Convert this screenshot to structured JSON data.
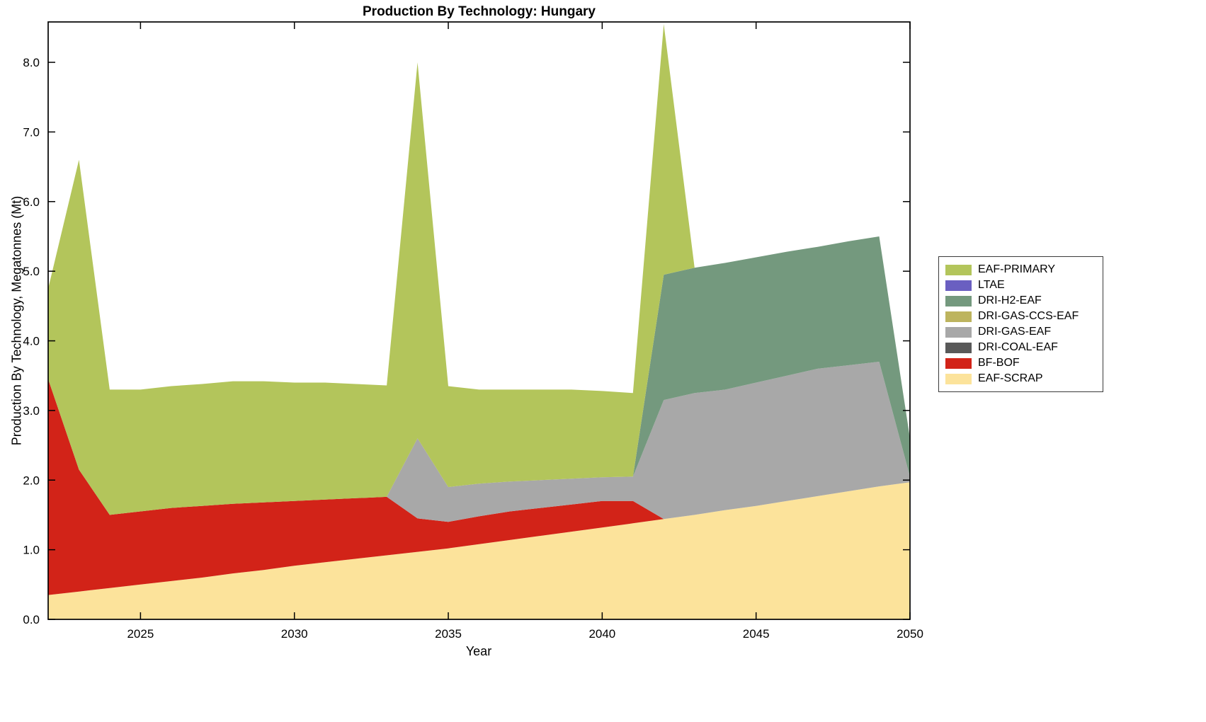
{
  "title": "Production By Technology: Hungary",
  "chart_data": {
    "type": "area",
    "title": "Production By Technology: Hungary",
    "xlabel": "Year",
    "ylabel": "Production By Technology, Megatonnes (Mt)",
    "xlim": [
      2022,
      2050
    ],
    "ylim": [
      0,
      8.58
    ],
    "grid": false,
    "legend_position": "right-outside",
    "xticks": [
      2025,
      2030,
      2035,
      2040,
      2045,
      2050
    ],
    "yticks": [
      "0.0",
      "1.0",
      "2.0",
      "3.0",
      "4.0",
      "5.0",
      "6.0",
      "7.0",
      "8.0"
    ],
    "x": [
      2022,
      2023,
      2024,
      2025,
      2026,
      2027,
      2028,
      2029,
      2030,
      2031,
      2032,
      2033,
      2034,
      2035,
      2036,
      2037,
      2038,
      2039,
      2040,
      2041,
      2042,
      2043,
      2044,
      2045,
      2046,
      2047,
      2048,
      2049,
      2050
    ],
    "stack_order": "bottom_to_top",
    "series": [
      {
        "name": "EAF-SCRAP",
        "color": "#fce39b",
        "values": [
          0.35,
          0.4,
          0.45,
          0.5,
          0.55,
          0.6,
          0.66,
          0.71,
          0.77,
          0.82,
          0.87,
          0.92,
          0.97,
          1.02,
          1.08,
          1.14,
          1.2,
          1.26,
          1.32,
          1.38,
          1.44,
          1.5,
          1.57,
          1.63,
          1.7,
          1.77,
          1.84,
          1.91,
          1.97
        ]
      },
      {
        "name": "BF-BOF",
        "color": "#d22318",
        "values": [
          3.1,
          1.75,
          1.05,
          1.05,
          1.05,
          1.03,
          1.0,
          0.97,
          0.93,
          0.9,
          0.87,
          0.84,
          0.48,
          0.38,
          0.4,
          0.41,
          0.4,
          0.39,
          0.38,
          0.32,
          0,
          0,
          0,
          0,
          0,
          0,
          0,
          0,
          0
        ]
      },
      {
        "name": "DRI-COAL-EAF",
        "color": "#595959",
        "values": [
          0,
          0,
          0,
          0,
          0,
          0,
          0,
          0,
          0,
          0,
          0,
          0,
          0,
          0,
          0,
          0,
          0,
          0,
          0,
          0,
          0,
          0,
          0,
          0,
          0,
          0,
          0,
          0,
          0
        ]
      },
      {
        "name": "DRI-GAS-EAF",
        "color": "#a8a8a8",
        "values": [
          0,
          0,
          0,
          0,
          0,
          0,
          0,
          0,
          0,
          0,
          0,
          0,
          1.15,
          0.5,
          0.47,
          0.43,
          0.4,
          0.37,
          0.34,
          0.35,
          1.71,
          1.75,
          1.73,
          1.77,
          1.8,
          1.83,
          1.81,
          1.79,
          0.08
        ]
      },
      {
        "name": "DRI-GAS-CCS-EAF",
        "color": "#bdb45e",
        "values": [
          0,
          0,
          0,
          0,
          0,
          0,
          0,
          0,
          0,
          0,
          0,
          0,
          0,
          0,
          0,
          0,
          0,
          0,
          0,
          0,
          0,
          0,
          0,
          0,
          0,
          0,
          0,
          0,
          0
        ]
      },
      {
        "name": "DRI-H2-EAF",
        "color": "#74997e",
        "values": [
          0,
          0,
          0,
          0,
          0,
          0,
          0,
          0,
          0,
          0,
          0,
          0,
          0,
          0,
          0,
          0,
          0,
          0,
          0,
          0,
          1.8,
          1.8,
          1.82,
          1.8,
          1.78,
          1.75,
          1.78,
          1.8,
          0.55
        ]
      },
      {
        "name": "LTAE",
        "color": "#6a5fc1",
        "values": [
          0,
          0,
          0,
          0,
          0,
          0,
          0,
          0,
          0,
          0,
          0,
          0,
          0,
          0,
          0,
          0,
          0,
          0,
          0,
          0,
          0,
          0,
          0,
          0,
          0,
          0,
          0,
          0,
          0
        ]
      },
      {
        "name": "EAF-PRIMARY",
        "color": "#b3c55b",
        "values": [
          1.3,
          4.45,
          1.8,
          1.75,
          1.75,
          1.75,
          1.76,
          1.74,
          1.7,
          1.68,
          1.64,
          1.6,
          5.4,
          1.45,
          1.35,
          1.32,
          1.3,
          1.28,
          1.24,
          1.2,
          3.6,
          0,
          0,
          0,
          0,
          0,
          0,
          0,
          0
        ]
      }
    ],
    "legend_order_top_to_bottom": [
      "EAF-PRIMARY",
      "LTAE",
      "DRI-H2-EAF",
      "DRI-GAS-CCS-EAF",
      "DRI-GAS-EAF",
      "DRI-COAL-EAF",
      "BF-BOF",
      "EAF-SCRAP"
    ]
  }
}
